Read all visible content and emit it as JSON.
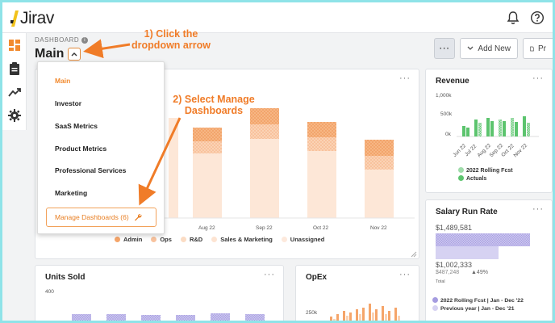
{
  "brand": {
    "name": "Jirav"
  },
  "header": {
    "dashboard_label": "DASHBOARD",
    "info_icon": "i",
    "title": "Main"
  },
  "toolbar": {
    "more_label": "···",
    "add_new_label": "Add New"
  },
  "dropdown": {
    "items": [
      {
        "label": "Main",
        "active": true
      },
      {
        "label": "Investor"
      },
      {
        "label": "SaaS Metrics"
      },
      {
        "label": "Product Metrics"
      },
      {
        "label": "Professional Services"
      },
      {
        "label": "Marketing"
      }
    ],
    "manage_label": "Manage Dashboards (6)"
  },
  "annotations": {
    "step1": [
      "1) Click the",
      "dropdown arrow"
    ],
    "step2": [
      "2) Select Manage",
      "Dashboards"
    ]
  },
  "main_chart": {
    "categories": [
      "Aug 22",
      "Sep 22",
      "Oct 22",
      "Nov 22"
    ],
    "legend": [
      "Admin",
      "Ops",
      "R&D",
      "Sales & Marketing",
      "Unassigned"
    ],
    "colors": {
      "admin": "#f5a56a",
      "ops": "#f8c39e",
      "rd": "#fbdcc4",
      "sales": "#fde9db",
      "unassigned": "#fdeee3"
    }
  },
  "revenue": {
    "title": "Revenue",
    "yticks": [
      "1,000k",
      "500k",
      "0k"
    ],
    "xticks": [
      "Jun 22",
      "Jul 22",
      "Aug 22",
      "Sep 22",
      "Oct 22",
      "Nov 22"
    ],
    "legend": [
      "2022 Rolling Fcst",
      "Actuals"
    ],
    "color": "#5cc46e"
  },
  "salary": {
    "title": "Salary Run Rate",
    "value_top": "$1,489,581",
    "value_mid": "$1,002,333",
    "value_low": "$487,248",
    "change": "▲49%",
    "total_label": "Total",
    "legend": [
      "2022 Rolling Fcst | Jan - Dec '22",
      "Previous year | Jan - Dec '21"
    ],
    "color": "#b7b1e6"
  },
  "units_sold": {
    "title": "Units Sold",
    "ytick": "400"
  },
  "opex": {
    "title": "OpEx",
    "ytick": "250k"
  },
  "card_menu": "···"
}
